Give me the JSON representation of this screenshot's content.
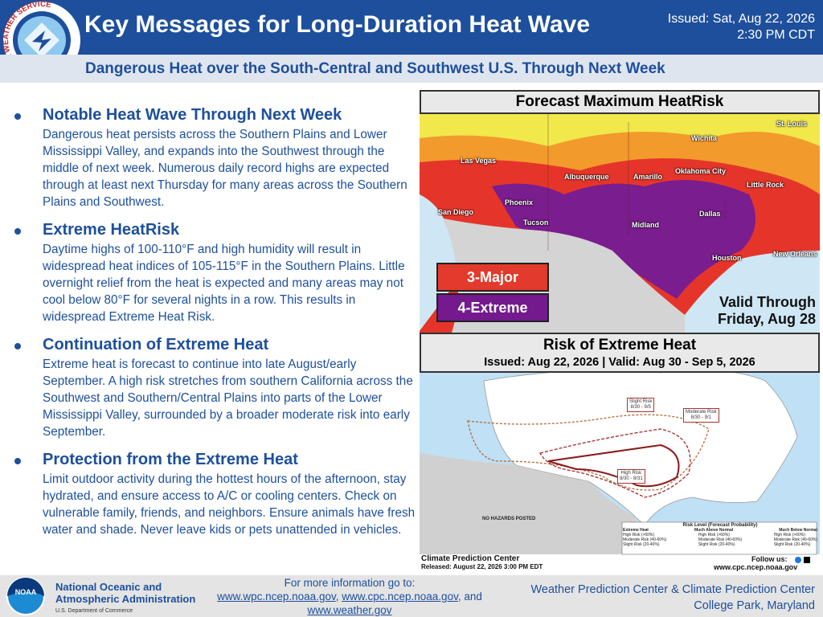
{
  "header": {
    "title": "Key Messages for Long-Duration Heat Wave",
    "issued_date": "Issued: Sat, Aug 22, 2026",
    "issued_time": "2:30 PM CDT",
    "subtitle": "Dangerous Heat over the South-Central and Southwest U.S. Through Next Week",
    "logo_text": "NATIONAL WEATHER SERVICE"
  },
  "messages": [
    {
      "heading": "Notable Heat Wave Through Next Week",
      "text": "Dangerous heat persists across the Southern Plains and Lower Mississippi Valley, and expands into the Southwest through the middle of next week. Numerous daily record highs are expected through at least next Thursday for many areas across the Southern Plains and Southwest."
    },
    {
      "heading": "Extreme HeatRisk",
      "text": "Daytime highs of 100-110°F and high humidity will result in widespread heat indices of 105-115°F in the Southern Plains. Little overnight relief from the heat is expected and many areas may not cool below 80°F for several nights in a row. This results in widespread Extreme Heat Risk."
    },
    {
      "heading": "Continuation of Extreme Heat",
      "text": "Extreme heat is forecast to continue into late August/early September. A high risk stretches from southern California across the Southwest and Southern/Central Plains into parts of the Lower Mississippi Valley, surrounded by a broader moderate risk into early September."
    },
    {
      "heading": "Protection from the Extreme Heat",
      "text": "Limit outdoor activity during the hottest hours of the afternoon, stay hydrated, and ensure access to A/C or cooling centers. Check on vulnerable family, friends, and neighbors. Ensure animals have fresh water and shade. Never leave kids or pets unattended in vehicles."
    }
  ],
  "heatrisk_map": {
    "title": "Forecast Maximum HeatRisk",
    "legend": [
      "3-Major",
      "4-Extreme"
    ],
    "valid": [
      "Valid Through",
      "Friday, Aug 28"
    ],
    "cities": [
      "St. Louis",
      "Wichita",
      "Las Vegas",
      "Albuquerque",
      "Amarillo",
      "Oklahoma City",
      "Little Rock",
      "Phoenix",
      "San Diego",
      "Tucson",
      "Dallas",
      "Midland",
      "Houston",
      "New Orleans"
    ]
  },
  "risk_map": {
    "title": "Risk of Extreme Heat",
    "issued": "Issued: Aug 22, 2026 | Valid: Aug 30 - Sep 5, 2026",
    "areas": [
      {
        "name": "Slight Risk",
        "dates": "8/30 - 9/5"
      },
      {
        "name": "Moderate Risk",
        "dates": "8/30 - 9/1"
      },
      {
        "name": "High Risk",
        "dates": "8/30 - 8/31"
      }
    ],
    "no_hazards": "NO HAZARDS POSTED",
    "legend": {
      "title": "Risk Level (Forecast Probability)",
      "columns": [
        "Extreme Heat",
        "Much Above Normal",
        "Much Below Normal"
      ],
      "entries": [
        "High Risk (>60%)",
        "Moderate Risk (40-60%)",
        "Slight Risk (20-40%)"
      ]
    },
    "source": "Climate Prediction Center",
    "released": "Released: August 22, 2026 3:00 PM EDT",
    "follow": "Follow us:",
    "url": "www.cpc.ncep.noaa.gov"
  },
  "footer": {
    "agency": [
      "National Oceanic and",
      "Atmospheric Administration"
    ],
    "department": "U.S. Department of Commerce",
    "logo": "NOAA",
    "info": "For more information go to:",
    "links": [
      "www.wpc.ncep.noaa.gov",
      "www.cpc.ncep.noaa.gov",
      "www.weather.gov"
    ],
    "and": "and",
    "centers": "Weather Prediction Center & Climate Prediction Center",
    "location": "College Park, Maryland"
  }
}
